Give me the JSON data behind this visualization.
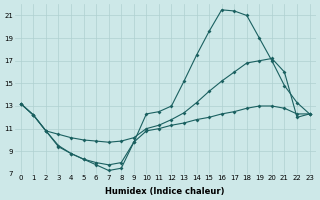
{
  "title": "",
  "xlabel": "Humidex (Indice chaleur)",
  "bg_color": "#cde8e8",
  "grid_color": "#afd0d0",
  "line_color": "#1a6060",
  "xlim": [
    -0.5,
    23.5
  ],
  "ylim": [
    7,
    22
  ],
  "yticks": [
    7,
    9,
    11,
    13,
    15,
    17,
    19,
    21
  ],
  "xticks": [
    0,
    1,
    2,
    3,
    4,
    5,
    6,
    7,
    8,
    9,
    10,
    11,
    12,
    13,
    14,
    15,
    16,
    17,
    18,
    19,
    20,
    21,
    22,
    23
  ],
  "line1_x": [
    0,
    1,
    2,
    3,
    4,
    5,
    6,
    7,
    8,
    9,
    10,
    11,
    12,
    13,
    14,
    15,
    16,
    17,
    18,
    19,
    20,
    21,
    22,
    23
  ],
  "line1_y": [
    13.2,
    12.2,
    10.8,
    9.4,
    8.8,
    8.3,
    7.8,
    7.3,
    7.5,
    9.8,
    12.3,
    12.5,
    13.0,
    15.2,
    17.5,
    19.6,
    21.5,
    21.4,
    21.0,
    19.0,
    17.0,
    14.8,
    13.3,
    12.3
  ],
  "line2_x": [
    0,
    1,
    2,
    3,
    4,
    5,
    6,
    7,
    8,
    9,
    10,
    11,
    12,
    13,
    14,
    15,
    16,
    17,
    18,
    19,
    20,
    21,
    22,
    23
  ],
  "line2_y": [
    13.2,
    12.2,
    10.8,
    10.5,
    10.2,
    10.0,
    9.9,
    9.8,
    9.9,
    10.2,
    11.0,
    11.3,
    11.8,
    12.4,
    13.3,
    14.3,
    15.2,
    16.0,
    16.8,
    17.0,
    17.2,
    16.0,
    12.0,
    12.3
  ],
  "line3_x": [
    0,
    1,
    2,
    3,
    4,
    5,
    6,
    7,
    8,
    9,
    10,
    11,
    12,
    13,
    14,
    15,
    16,
    17,
    18,
    19,
    20,
    21,
    22,
    23
  ],
  "line3_y": [
    13.2,
    12.2,
    10.8,
    9.5,
    8.8,
    8.3,
    8.0,
    7.8,
    8.0,
    9.8,
    10.8,
    11.0,
    11.3,
    11.5,
    11.8,
    12.0,
    12.3,
    12.5,
    12.8,
    13.0,
    13.0,
    12.8,
    12.3,
    12.3
  ],
  "xlabel_fontsize": 6,
  "tick_fontsize": 5,
  "linewidth": 0.8,
  "markersize": 2.0
}
